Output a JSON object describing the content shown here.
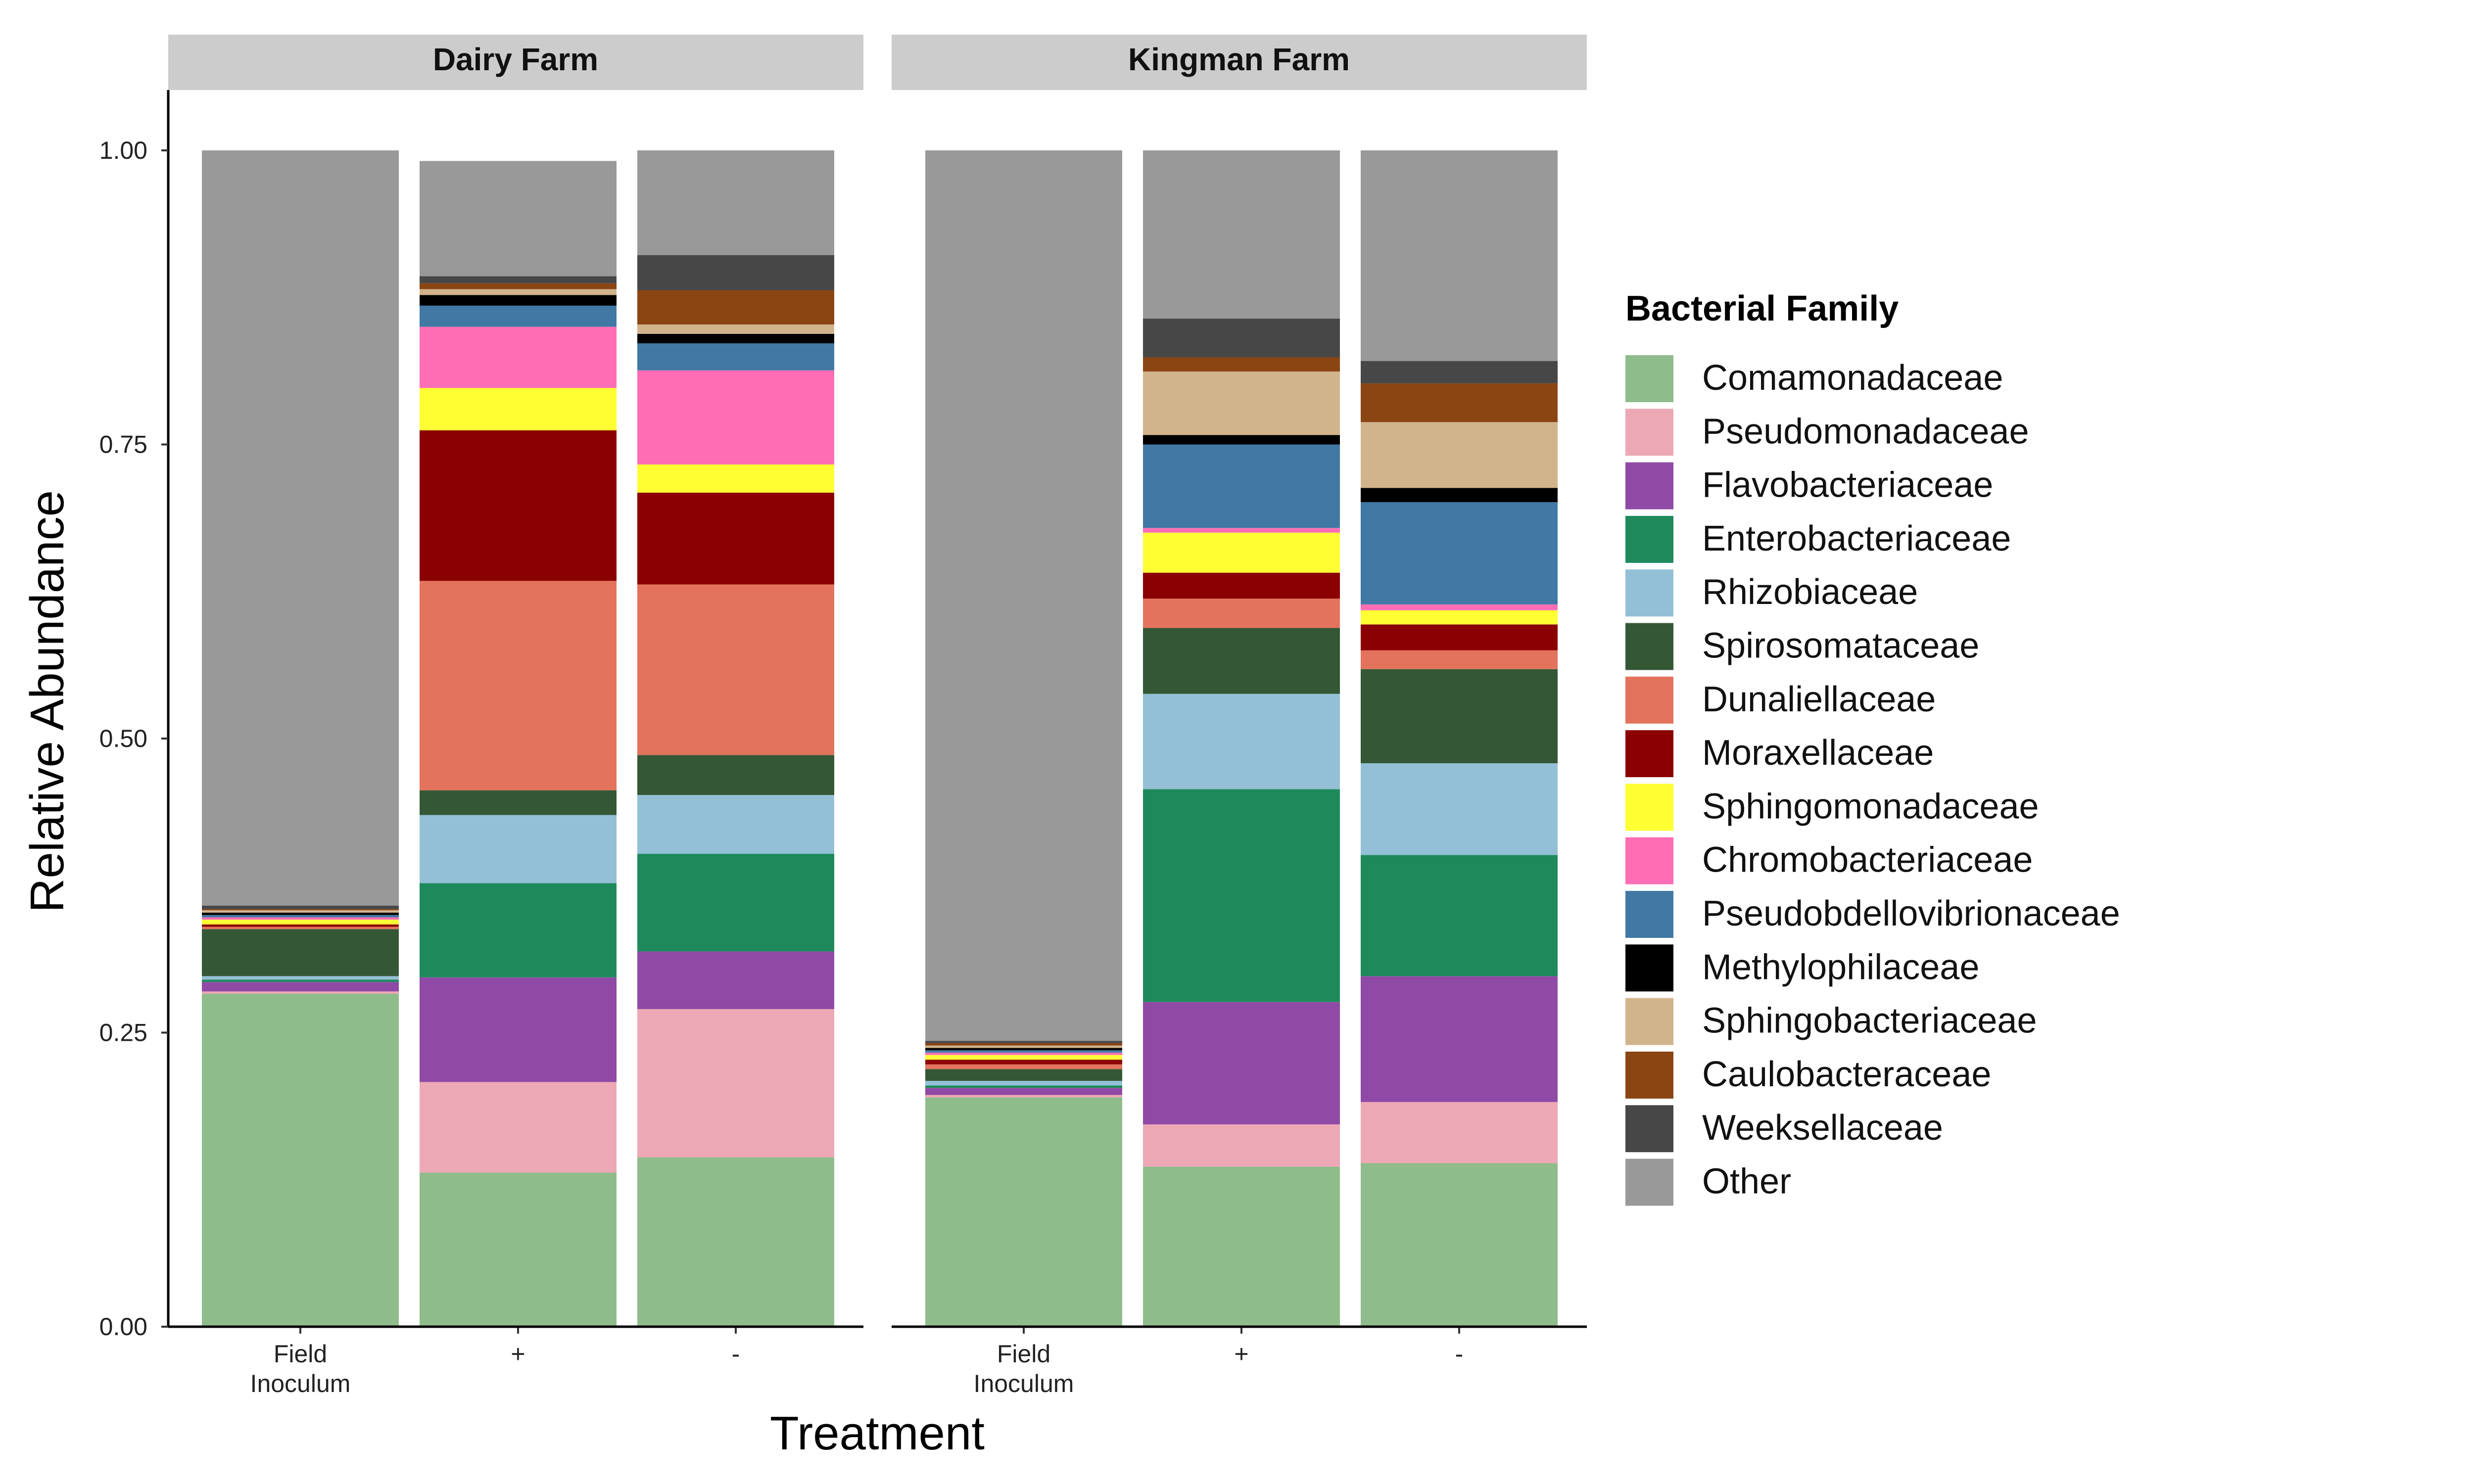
{
  "chart_data": {
    "type": "bar",
    "stacked": true,
    "xlabel": "Treatment",
    "ylabel": "Relative Abundance",
    "ylim": [
      0,
      1.05
    ],
    "yticks": [
      "0.00",
      "0.25",
      "0.50",
      "0.75",
      "1.00"
    ],
    "categories": [
      "Field\nInoculum",
      "+",
      "-"
    ],
    "legend": {
      "title": "Bacterial Family",
      "position": "right",
      "entries": [
        {
          "name": "Comamonadaceae",
          "color": "#8FBC8B"
        },
        {
          "name": "Pseudomonadaceae",
          "color": "#EDA8B6"
        },
        {
          "name": "Flavobacteriaceae",
          "color": "#8F4AA6"
        },
        {
          "name": "Enterobacteriaceae",
          "color": "#1E8A5C"
        },
        {
          "name": "Rhizobiaceae",
          "color": "#93C0D6"
        },
        {
          "name": "Spirosomataceae",
          "color": "#345735"
        },
        {
          "name": "Dunaliellaceae",
          "color": "#E3735D"
        },
        {
          "name": "Moraxellaceae",
          "color": "#8B0000"
        },
        {
          "name": "Sphingomonadaceae",
          "color": "#FFFF33"
        },
        {
          "name": "Chromobacteriaceae",
          "color": "#FF6EB4"
        },
        {
          "name": "Pseudobdellovibrionaceae",
          "color": "#4178A4"
        },
        {
          "name": "Methylophilaceae",
          "color": "#000000"
        },
        {
          "name": "Sphingobacteriaceae",
          "color": "#D2B48C"
        },
        {
          "name": "Caulobacteraceae",
          "color": "#8B4513"
        },
        {
          "name": "Weeksellaceae",
          "color": "#474747"
        },
        {
          "name": "Other",
          "color": "#999999"
        }
      ]
    },
    "panels": [
      {
        "title": "Dairy Farm",
        "bars": [
          {
            "category": "Field\nInoculum",
            "values": [
              0.283,
              0.002,
              0.008,
              0.002,
              0.003,
              0.04,
              0.002,
              0.002,
              0.004,
              0.002,
              0.002,
              0.002,
              0.002,
              0.001,
              0.003,
              0.642
            ]
          },
          {
            "category": "+",
            "values": [
              0.131,
              0.077,
              0.089,
              0.08,
              0.058,
              0.021,
              0.178,
              0.128,
              0.036,
              0.052,
              0.018,
              0.009,
              0.005,
              0.005,
              0.006,
              0.098
            ]
          },
          {
            "category": "-",
            "values": [
              0.144,
              0.126,
              0.049,
              0.083,
              0.05,
              0.034,
              0.145,
              0.078,
              0.024,
              0.08,
              0.023,
              0.008,
              0.008,
              0.029,
              0.03,
              0.089
            ]
          }
        ]
      },
      {
        "title": "Kingman Farm",
        "bars": [
          {
            "category": "Field\nInoculum",
            "values": [
              0.195,
              0.002,
              0.006,
              0.002,
              0.004,
              0.01,
              0.004,
              0.004,
              0.004,
              0.002,
              0.002,
              0.002,
              0.002,
              0.002,
              0.002,
              0.757
            ]
          },
          {
            "category": "+",
            "values": [
              0.136,
              0.036,
              0.104,
              0.181,
              0.081,
              0.056,
              0.025,
              0.022,
              0.034,
              0.004,
              0.071,
              0.008,
              0.054,
              0.012,
              0.033,
              0.143
            ]
          },
          {
            "category": "-",
            "values": [
              0.139,
              0.052,
              0.107,
              0.103,
              0.078,
              0.08,
              0.016,
              0.022,
              0.012,
              0.005,
              0.087,
              0.012,
              0.056,
              0.033,
              0.019,
              0.179
            ]
          }
        ]
      }
    ]
  }
}
